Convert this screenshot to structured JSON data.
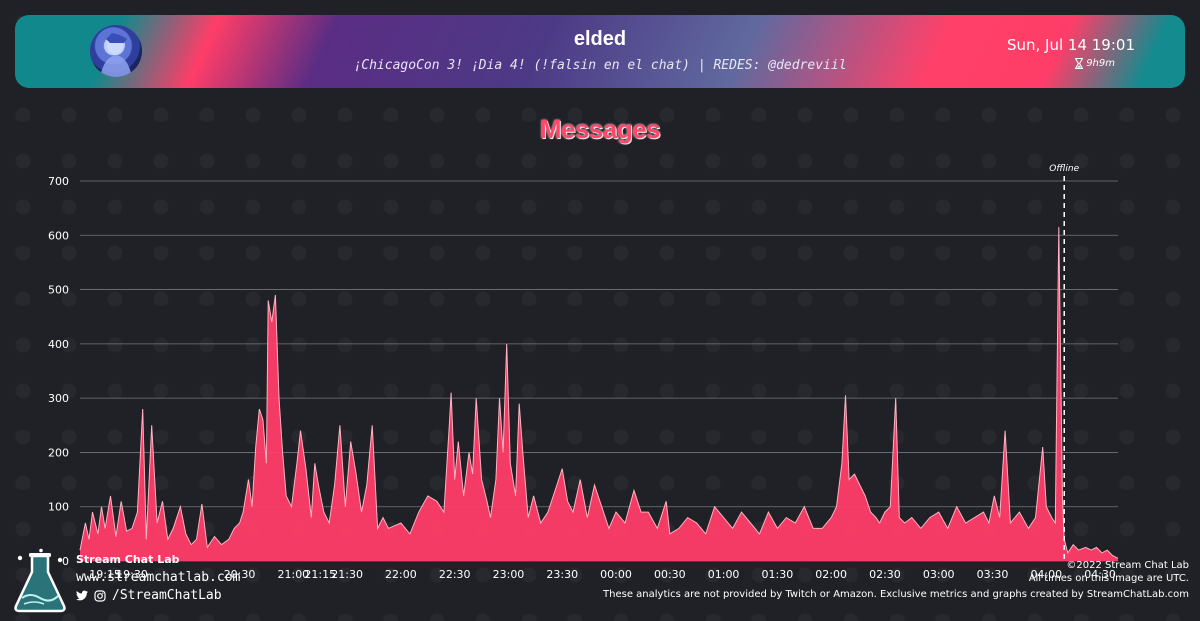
{
  "header": {
    "channel_name": "elded",
    "stream_title": "¡ChicagoCon 3! ¡Dia 4! (!falsin en el chat) | REDES: @dedreviil",
    "date_time": "Sun, Jul 14 19:01",
    "duration": "9h9m"
  },
  "colors": {
    "accent": "#ff3d68",
    "teal": "#11898c",
    "purple": "#5a2d84",
    "background": "#1f2126",
    "area_fill": "#ff3d68",
    "area_line": "#ffb3c2"
  },
  "footer": {
    "brand": "Stream Chat Lab",
    "site": "www.streamchatlab.com",
    "social_handle": "/StreamChatLab",
    "copyright": "©2022 Stream Chat Lab",
    "timezone_note": "All times on this image are UTC.",
    "disclaimer": "These analytics are not provided by Twitch or Amazon. Exclusive metrics and graphs created by StreamChatLab.com"
  },
  "chart_data": {
    "type": "area",
    "title": "Messages",
    "xlabel": "",
    "ylabel": "",
    "ylim": [
      0,
      700
    ],
    "yticks": [
      0,
      100,
      200,
      300,
      400,
      500,
      600,
      700
    ],
    "x_range": [
      "19:01",
      "04:40"
    ],
    "xtick_labels": [
      {
        "label": "19:15",
        "time": "19:15"
      },
      {
        "label": "19:30",
        "time": "19:30"
      },
      {
        "label": "20:30",
        "time": "20:30"
      },
      {
        "label": "21:00",
        "time": "21:00"
      },
      {
        "label": "21:15",
        "time": "21:15"
      },
      {
        "label": "21:30",
        "time": "21:30"
      },
      {
        "label": "22:00",
        "time": "22:00"
      },
      {
        "label": "22:30",
        "time": "22:30"
      },
      {
        "label": "23:00",
        "time": "23:00"
      },
      {
        "label": "23:30",
        "time": "23:30"
      },
      {
        "label": "00:00",
        "time": "00:00"
      },
      {
        "label": "00:30",
        "time": "00:30"
      },
      {
        "label": "01:00",
        "time": "01:00"
      },
      {
        "label": "01:30",
        "time": "01:30"
      },
      {
        "label": "02:00",
        "time": "02:00"
      },
      {
        "label": "02:30",
        "time": "02:30"
      },
      {
        "label": "03:00",
        "time": "03:00"
      },
      {
        "label": "03:30",
        "time": "03:30"
      },
      {
        "label": "04:00",
        "time": "04:00"
      },
      {
        "label": "04:30",
        "time": "04:30"
      }
    ],
    "annotations": [
      {
        "label": "Offline",
        "time": "04:10"
      }
    ],
    "grid": true,
    "legend": "none",
    "series": [
      {
        "points": [
          [
            "19:01",
            20
          ],
          [
            "19:04",
            70
          ],
          [
            "19:06",
            40
          ],
          [
            "19:08",
            90
          ],
          [
            "19:11",
            50
          ],
          [
            "19:13",
            100
          ],
          [
            "19:15",
            60
          ],
          [
            "19:18",
            120
          ],
          [
            "19:21",
            45
          ],
          [
            "19:24",
            110
          ],
          [
            "19:27",
            55
          ],
          [
            "19:30",
            60
          ],
          [
            "19:33",
            90
          ],
          [
            "19:36",
            280
          ],
          [
            "19:38",
            40
          ],
          [
            "19:41",
            250
          ],
          [
            "19:44",
            70
          ],
          [
            "19:47",
            110
          ],
          [
            "19:50",
            40
          ],
          [
            "19:53",
            60
          ],
          [
            "19:57",
            100
          ],
          [
            "20:00",
            50
          ],
          [
            "20:03",
            30
          ],
          [
            "20:06",
            40
          ],
          [
            "20:09",
            105
          ],
          [
            "20:12",
            25
          ],
          [
            "20:16",
            45
          ],
          [
            "20:20",
            30
          ],
          [
            "20:24",
            40
          ],
          [
            "20:27",
            60
          ],
          [
            "20:30",
            70
          ],
          [
            "20:32",
            90
          ],
          [
            "20:35",
            150
          ],
          [
            "20:37",
            100
          ],
          [
            "20:39",
            210
          ],
          [
            "20:41",
            280
          ],
          [
            "20:43",
            260
          ],
          [
            "20:45",
            180
          ],
          [
            "20:46",
            480
          ],
          [
            "20:48",
            440
          ],
          [
            "20:50",
            490
          ],
          [
            "20:52",
            300
          ],
          [
            "20:54",
            200
          ],
          [
            "20:56",
            120
          ],
          [
            "20:59",
            100
          ],
          [
            "21:02",
            180
          ],
          [
            "21:04",
            240
          ],
          [
            "21:07",
            170
          ],
          [
            "21:10",
            80
          ],
          [
            "21:12",
            180
          ],
          [
            "21:14",
            140
          ],
          [
            "21:17",
            90
          ],
          [
            "21:20",
            70
          ],
          [
            "21:23",
            140
          ],
          [
            "21:26",
            250
          ],
          [
            "21:29",
            100
          ],
          [
            "21:32",
            220
          ],
          [
            "21:35",
            160
          ],
          [
            "21:38",
            90
          ],
          [
            "21:41",
            140
          ],
          [
            "21:44",
            250
          ],
          [
            "21:47",
            60
          ],
          [
            "21:50",
            80
          ],
          [
            "21:53",
            60
          ],
          [
            "22:00",
            70
          ],
          [
            "22:05",
            50
          ],
          [
            "22:10",
            90
          ],
          [
            "22:15",
            120
          ],
          [
            "22:20",
            110
          ],
          [
            "22:24",
            90
          ],
          [
            "22:27",
            250
          ],
          [
            "22:28",
            310
          ],
          [
            "22:30",
            150
          ],
          [
            "22:32",
            220
          ],
          [
            "22:35",
            120
          ],
          [
            "22:38",
            200
          ],
          [
            "22:40",
            160
          ],
          [
            "22:42",
            300
          ],
          [
            "22:45",
            150
          ],
          [
            "22:48",
            110
          ],
          [
            "22:50",
            80
          ],
          [
            "22:53",
            150
          ],
          [
            "22:55",
            300
          ],
          [
            "22:57",
            200
          ],
          [
            "22:59",
            400
          ],
          [
            "23:01",
            180
          ],
          [
            "23:04",
            120
          ],
          [
            "23:06",
            290
          ],
          [
            "23:08",
            200
          ],
          [
            "23:11",
            80
          ],
          [
            "23:14",
            120
          ],
          [
            "23:18",
            70
          ],
          [
            "23:22",
            90
          ],
          [
            "23:27",
            140
          ],
          [
            "23:30",
            170
          ],
          [
            "23:33",
            110
          ],
          [
            "23:36",
            90
          ],
          [
            "23:40",
            150
          ],
          [
            "23:44",
            80
          ],
          [
            "23:48",
            140
          ],
          [
            "23:52",
            100
          ],
          [
            "23:56",
            60
          ],
          [
            "00:00",
            90
          ],
          [
            "00:05",
            70
          ],
          [
            "00:10",
            130
          ],
          [
            "00:14",
            90
          ],
          [
            "00:18",
            90
          ],
          [
            "00:23",
            60
          ],
          [
            "00:28",
            110
          ],
          [
            "00:30",
            50
          ],
          [
            "00:35",
            60
          ],
          [
            "00:40",
            80
          ],
          [
            "00:45",
            70
          ],
          [
            "00:50",
            50
          ],
          [
            "00:55",
            100
          ],
          [
            "01:00",
            80
          ],
          [
            "01:05",
            60
          ],
          [
            "01:10",
            90
          ],
          [
            "01:15",
            70
          ],
          [
            "01:20",
            50
          ],
          [
            "01:25",
            90
          ],
          [
            "01:30",
            60
          ],
          [
            "01:35",
            80
          ],
          [
            "01:40",
            70
          ],
          [
            "01:45",
            100
          ],
          [
            "01:50",
            60
          ],
          [
            "01:55",
            60
          ],
          [
            "02:00",
            80
          ],
          [
            "02:03",
            100
          ],
          [
            "02:06",
            180
          ],
          [
            "02:08",
            305
          ],
          [
            "02:10",
            150
          ],
          [
            "02:13",
            160
          ],
          [
            "02:16",
            140
          ],
          [
            "02:19",
            120
          ],
          [
            "02:22",
            90
          ],
          [
            "02:25",
            80
          ],
          [
            "02:27",
            70
          ],
          [
            "02:30",
            90
          ],
          [
            "02:33",
            100
          ],
          [
            "02:36",
            300
          ],
          [
            "02:38",
            80
          ],
          [
            "02:41",
            70
          ],
          [
            "02:45",
            80
          ],
          [
            "02:50",
            60
          ],
          [
            "02:55",
            80
          ],
          [
            "03:00",
            90
          ],
          [
            "03:05",
            60
          ],
          [
            "03:10",
            100
          ],
          [
            "03:15",
            70
          ],
          [
            "03:20",
            80
          ],
          [
            "03:25",
            90
          ],
          [
            "03:28",
            70
          ],
          [
            "03:31",
            120
          ],
          [
            "03:34",
            80
          ],
          [
            "03:37",
            240
          ],
          [
            "03:40",
            70
          ],
          [
            "03:45",
            90
          ],
          [
            "03:50",
            60
          ],
          [
            "03:54",
            80
          ],
          [
            "03:58",
            210
          ],
          [
            "04:00",
            100
          ],
          [
            "04:03",
            80
          ],
          [
            "04:05",
            70
          ],
          [
            "04:07",
            615
          ],
          [
            "04:09",
            120
          ],
          [
            "04:10",
            40
          ],
          [
            "04:12",
            15
          ],
          [
            "04:15",
            30
          ],
          [
            "04:18",
            20
          ],
          [
            "04:22",
            25
          ],
          [
            "04:25",
            20
          ],
          [
            "04:28",
            25
          ],
          [
            "04:31",
            15
          ],
          [
            "04:34",
            20
          ],
          [
            "04:37",
            10
          ],
          [
            "04:40",
            5
          ]
        ]
      }
    ]
  }
}
